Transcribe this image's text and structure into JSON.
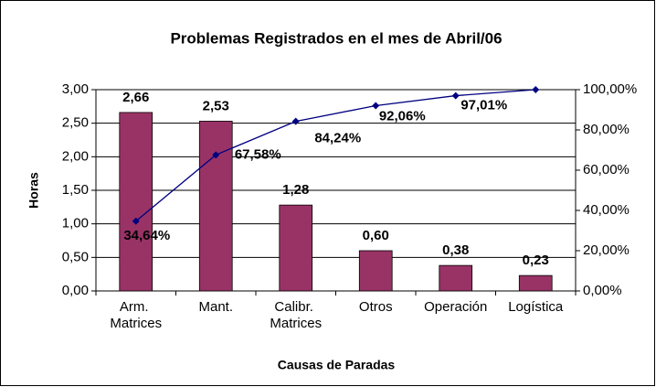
{
  "chart_data": {
    "type": "bar",
    "title": "Problemas Registrados en el mes de Abril/06",
    "x_label": "Causas de Paradas",
    "y_label": "Horas",
    "categories": [
      "Arm. Matrices",
      "Mant.",
      "Calibr. Matrices",
      "Otros",
      "Operación",
      "Logística"
    ],
    "series": [
      {
        "type": "bar",
        "color": "#993366",
        "values": [
          2.66,
          2.53,
          1.28,
          0.6,
          0.38,
          0.23
        ],
        "value_labels": [
          "2,66",
          "2,53",
          "1,28",
          "0,60",
          "0,38",
          "0,23"
        ]
      },
      {
        "type": "line",
        "axis": "y2",
        "color": "#000080",
        "values": [
          34.64,
          67.58,
          84.24,
          92.06,
          97.01,
          100
        ],
        "value_labels": [
          "34,64%",
          "67,58%",
          "84,24%",
          "92,06%",
          "97,01%",
          null
        ]
      }
    ],
    "ylim": [
      0,
      3
    ],
    "yticks": [
      {
        "value": 0,
        "label": "0,00"
      },
      {
        "value": 0.5,
        "label": "0,50"
      },
      {
        "value": 1,
        "label": "1,00"
      },
      {
        "value": 1.5,
        "label": "1,50"
      },
      {
        "value": 2,
        "label": "2,00"
      },
      {
        "value": 2.5,
        "label": "2,50"
      },
      {
        "value": 3,
        "label": "3,00"
      }
    ],
    "y2lim": [
      0,
      100
    ],
    "y2ticks": [
      {
        "value": 0,
        "label": "0,00%"
      },
      {
        "value": 20,
        "label": "20,00%"
      },
      {
        "value": 40,
        "label": "40,00%"
      },
      {
        "value": 60,
        "label": "60,00%"
      },
      {
        "value": 80,
        "label": "80,00%"
      },
      {
        "value": 100,
        "label": "100,00%"
      }
    ],
    "grid": true
  }
}
